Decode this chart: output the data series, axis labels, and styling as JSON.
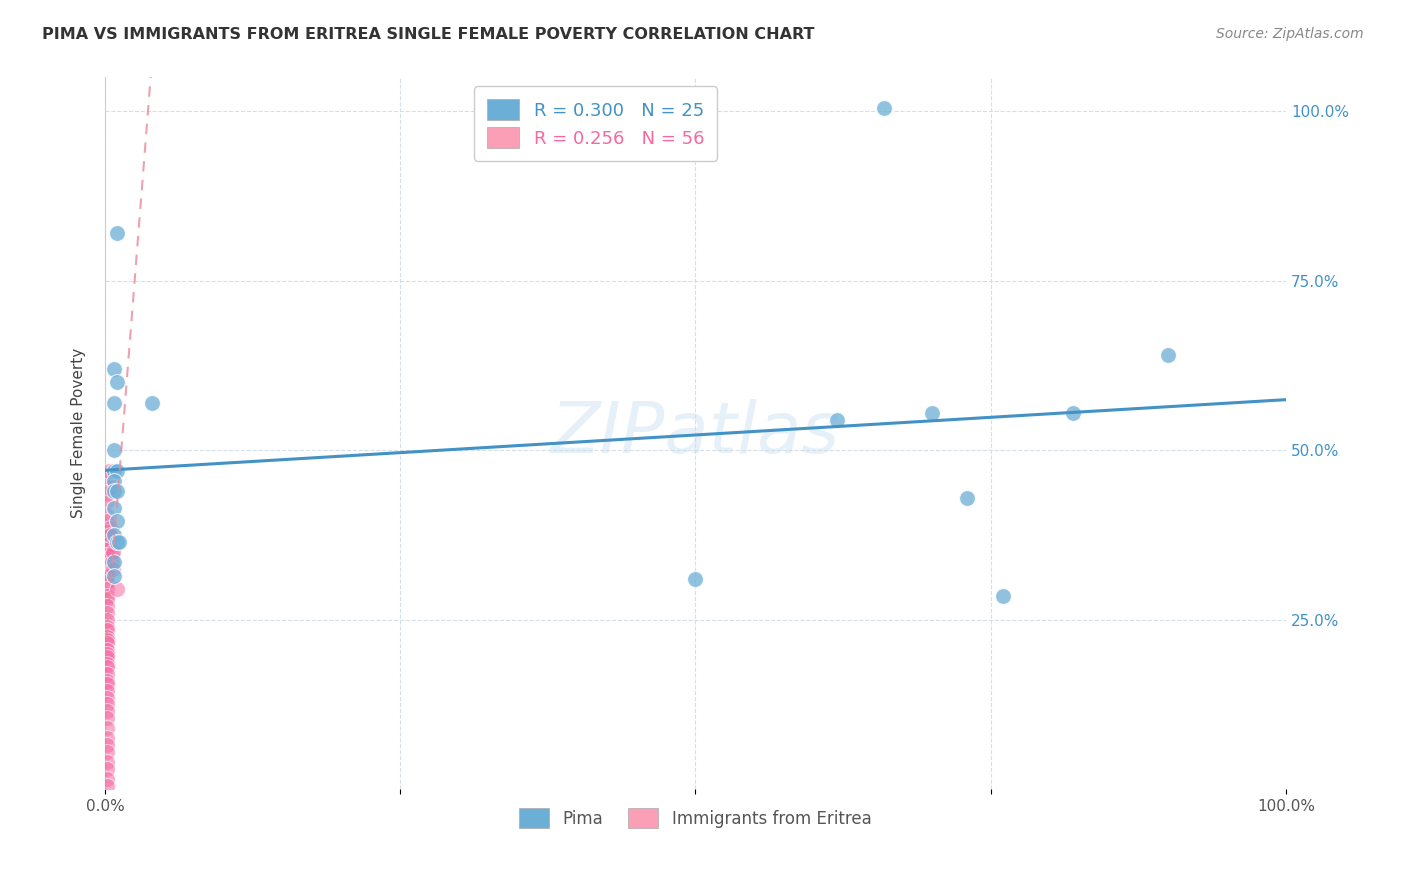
{
  "title": "PIMA VS IMMIGRANTS FROM ERITREA SINGLE FEMALE POVERTY CORRELATION CHART",
  "source": "Source: ZipAtlas.com",
  "ylabel": "Single Female Poverty",
  "watermark": "ZIPatlas",
  "background_color": "#ffffff",
  "pima_color": "#6baed6",
  "eritrea_color": "#f768a1",
  "trendline_pima_color": "#4292c6",
  "trendline_eritrea_color": "#e88a9a",
  "legend_color1": "#6baed6",
  "legend_color2": "#fa9fb5",
  "grid_color": "#d0dce8",
  "right_tick_color": "#4292c6",
  "pima_points": [
    [
      0.01,
      0.82
    ],
    [
      0.008,
      0.62
    ],
    [
      0.01,
      0.6
    ],
    [
      0.008,
      0.57
    ],
    [
      0.04,
      0.57
    ],
    [
      0.008,
      0.5
    ],
    [
      0.008,
      0.47
    ],
    [
      0.01,
      0.47
    ],
    [
      0.008,
      0.455
    ],
    [
      0.008,
      0.44
    ],
    [
      0.01,
      0.44
    ],
    [
      0.008,
      0.415
    ],
    [
      0.01,
      0.395
    ],
    [
      0.008,
      0.375
    ],
    [
      0.01,
      0.365
    ],
    [
      0.012,
      0.365
    ],
    [
      0.008,
      0.335
    ],
    [
      0.008,
      0.315
    ],
    [
      0.5,
      0.31
    ],
    [
      0.62,
      0.545
    ],
    [
      0.66,
      1.005
    ],
    [
      0.7,
      0.555
    ],
    [
      0.73,
      0.43
    ],
    [
      0.76,
      0.285
    ],
    [
      0.82,
      0.555
    ],
    [
      0.9,
      0.64
    ]
  ],
  "eritrea_points": [
    [
      0.002,
      0.435
    ],
    [
      0.002,
      0.425
    ],
    [
      0.002,
      0.405
    ],
    [
      0.002,
      0.395
    ],
    [
      0.002,
      0.38
    ],
    [
      0.002,
      0.37
    ],
    [
      0.002,
      0.36
    ],
    [
      0.002,
      0.355
    ],
    [
      0.002,
      0.345
    ],
    [
      0.002,
      0.34
    ],
    [
      0.002,
      0.33
    ],
    [
      0.002,
      0.32
    ],
    [
      0.002,
      0.315
    ],
    [
      0.002,
      0.305
    ],
    [
      0.002,
      0.295
    ],
    [
      0.002,
      0.285
    ],
    [
      0.002,
      0.28
    ],
    [
      0.002,
      0.27
    ],
    [
      0.002,
      0.26
    ],
    [
      0.002,
      0.25
    ],
    [
      0.002,
      0.24
    ],
    [
      0.002,
      0.235
    ],
    [
      0.002,
      0.225
    ],
    [
      0.002,
      0.22
    ],
    [
      0.002,
      0.215
    ],
    [
      0.002,
      0.205
    ],
    [
      0.002,
      0.2
    ],
    [
      0.002,
      0.195
    ],
    [
      0.002,
      0.185
    ],
    [
      0.002,
      0.18
    ],
    [
      0.002,
      0.17
    ],
    [
      0.002,
      0.16
    ],
    [
      0.002,
      0.155
    ],
    [
      0.002,
      0.145
    ],
    [
      0.002,
      0.135
    ],
    [
      0.002,
      0.125
    ],
    [
      0.002,
      0.115
    ],
    [
      0.002,
      0.105
    ],
    [
      0.002,
      0.09
    ],
    [
      0.002,
      0.075
    ],
    [
      0.002,
      0.065
    ],
    [
      0.002,
      0.055
    ],
    [
      0.002,
      0.04
    ],
    [
      0.002,
      0.03
    ],
    [
      0.002,
      0.015
    ],
    [
      0.002,
      0.005
    ],
    [
      0.003,
      0.445
    ],
    [
      0.003,
      0.46
    ],
    [
      0.003,
      0.47
    ],
    [
      0.004,
      0.385
    ],
    [
      0.004,
      0.375
    ],
    [
      0.006,
      0.345
    ],
    [
      0.006,
      0.335
    ],
    [
      0.007,
      0.35
    ],
    [
      0.007,
      0.325
    ],
    [
      0.01,
      0.295
    ]
  ]
}
